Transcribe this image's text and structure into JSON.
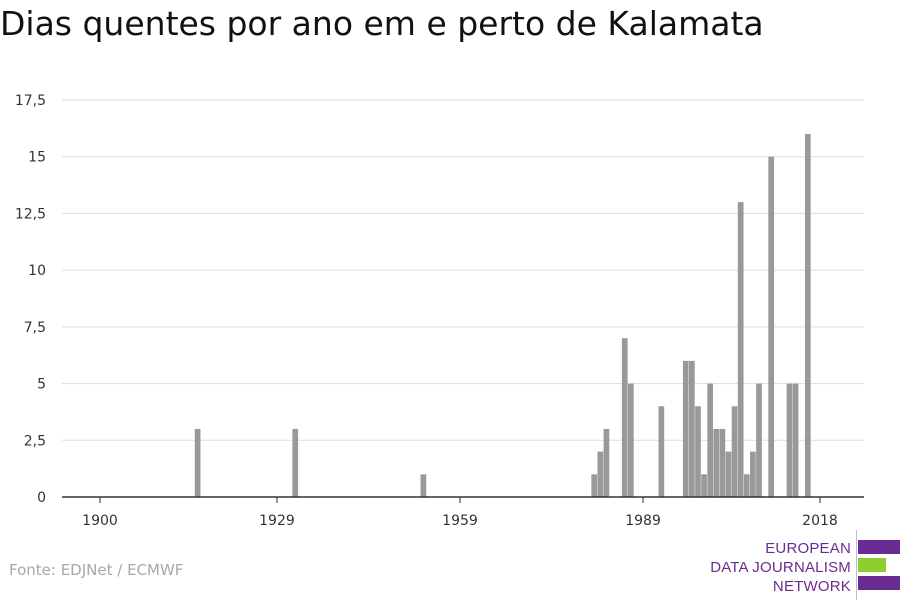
{
  "chart_data": {
    "type": "bar",
    "title": "Dias quentes por ano em e perto de Kalamata",
    "xlabel": "",
    "ylabel": "",
    "xlim": [
      1900,
      2018
    ],
    "ylim": [
      0,
      17.5
    ],
    "yticks": [
      {
        "value": 0,
        "label": "0"
      },
      {
        "value": 2.5,
        "label": "2,5"
      },
      {
        "value": 5,
        "label": "5"
      },
      {
        "value": 7.5,
        "label": "7,5"
      },
      {
        "value": 10,
        "label": "10"
      },
      {
        "value": 12.5,
        "label": "12,5"
      },
      {
        "value": 15,
        "label": "15"
      },
      {
        "value": 17.5,
        "label": "17,5"
      }
    ],
    "xticks": [
      {
        "value": 1900,
        "label": "1900"
      },
      {
        "value": 1929,
        "label": "1929"
      },
      {
        "value": 1959,
        "label": "1959"
      },
      {
        "value": 1989,
        "label": "1989"
      },
      {
        "value": 2018,
        "label": "2018"
      }
    ],
    "grid": true,
    "bar_color": "#999999",
    "x": [
      1916,
      1932,
      1953,
      1981,
      1982,
      1983,
      1986,
      1987,
      1992,
      1996,
      1997,
      1998,
      1999,
      2000,
      2001,
      2002,
      2003,
      2004,
      2005,
      2006,
      2007,
      2008,
      2010,
      2013,
      2014,
      2016
    ],
    "values": [
      3,
      3,
      1,
      1,
      2,
      3,
      7,
      5,
      4,
      6,
      6,
      4,
      1,
      5,
      3,
      3,
      2,
      4,
      13,
      1,
      2,
      5,
      15,
      5,
      5,
      16
    ]
  },
  "footer": {
    "source": "Fonte: EDJNet / ECMWF",
    "logo_line1": "EUROPEAN",
    "logo_line2": "DATA JOURNALISM",
    "logo_line3": "NETWORK"
  }
}
